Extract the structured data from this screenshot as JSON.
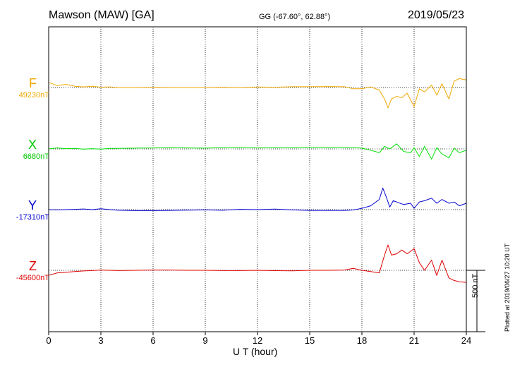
{
  "header": {
    "station": "Mawson (MAW)  [GA]",
    "coords": "GG (-67.60°,  62.88°)",
    "date": "2019/05/23"
  },
  "footer": {
    "plotted": "Plotted at 2019/06/27 10:20 UT",
    "scale_label": "500 nT"
  },
  "colors": {
    "F": "#f0a800",
    "X": "#00e000",
    "Y": "#0000d0",
    "Z": "#e00000"
  },
  "chart_data": {
    "type": "line",
    "title": "Mawson (MAW)  [GA]",
    "xlabel": "U T (hour)",
    "xlim": [
      0,
      24
    ],
    "xticks": [
      0,
      3,
      6,
      9,
      12,
      15,
      18,
      21,
      24
    ],
    "scale_bar_nT": 500,
    "grid": "dotted vertical every 3 h; dotted baseline per component",
    "series": [
      {
        "name": "F",
        "baseline_label": "49230nT",
        "baseline": 49230,
        "color": "#f0a800",
        "x": [
          0,
          0.5,
          1,
          1.5,
          2,
          2.5,
          3,
          3.5,
          4,
          5,
          6,
          7,
          8,
          9,
          10,
          11,
          12,
          13,
          14,
          15,
          16,
          17,
          17.5,
          18,
          18.5,
          19,
          19.3,
          19.5,
          19.7,
          20,
          20.3,
          20.6,
          21,
          21.3,
          21.6,
          22,
          22.3,
          22.6,
          23,
          23.3,
          23.6,
          24
        ],
        "y": [
          49270,
          49245,
          49255,
          49240,
          49235,
          49240,
          49232,
          49235,
          49230,
          49230,
          49232,
          49230,
          49230,
          49230,
          49232,
          49230,
          49234,
          49232,
          49236,
          49236,
          49238,
          49236,
          49220,
          49220,
          49235,
          49210,
          49140,
          49070,
          49140,
          49160,
          49150,
          49185,
          49080,
          49220,
          49195,
          49250,
          49170,
          49260,
          49140,
          49280,
          49300,
          49290
        ]
      },
      {
        "name": "X",
        "baseline_label": "6680nT",
        "baseline": 6680,
        "color": "#00e000",
        "x": [
          0,
          0.5,
          1,
          1.5,
          2,
          2.5,
          3,
          3.5,
          4,
          5,
          6,
          7,
          8,
          9,
          10,
          11,
          12,
          13,
          14,
          15,
          16,
          17,
          17.5,
          18,
          18.5,
          19,
          19.3,
          19.6,
          20,
          20.4,
          20.8,
          21,
          21.3,
          21.6,
          22,
          22.3,
          22.6,
          23,
          23.3,
          23.6,
          24
        ],
        "y": [
          6680,
          6688,
          6682,
          6684,
          6678,
          6682,
          6678,
          6684,
          6684,
          6686,
          6688,
          6690,
          6688,
          6686,
          6690,
          6692,
          6688,
          6690,
          6690,
          6692,
          6694,
          6694,
          6690,
          6686,
          6670,
          6650,
          6700,
          6680,
          6720,
          6660,
          6650,
          6690,
          6620,
          6700,
          6600,
          6690,
          6640,
          6610,
          6685,
          6650,
          6670
        ]
      },
      {
        "name": "Y",
        "baseline_label": "-17310nT",
        "baseline": -17310,
        "color": "#0000d0",
        "x": [
          0,
          0.5,
          1,
          1.5,
          2,
          2.5,
          3,
          3.5,
          4,
          5,
          6,
          7,
          8,
          9,
          10,
          11,
          12,
          13,
          14,
          15,
          16,
          17,
          17.5,
          18,
          18.5,
          19,
          19.2,
          19.4,
          19.6,
          19.8,
          20,
          20.4,
          20.8,
          21,
          21.3,
          21.6,
          22,
          22.3,
          22.6,
          23,
          23.3,
          23.6,
          24
        ],
        "y": [
          -17310,
          -17312,
          -17310,
          -17308,
          -17305,
          -17310,
          -17303,
          -17310,
          -17315,
          -17318,
          -17318,
          -17316,
          -17314,
          -17312,
          -17315,
          -17308,
          -17310,
          -17306,
          -17312,
          -17316,
          -17316,
          -17316,
          -17313,
          -17300,
          -17280,
          -17230,
          -17140,
          -17210,
          -17290,
          -17240,
          -17250,
          -17270,
          -17260,
          -17300,
          -17250,
          -17240,
          -17220,
          -17260,
          -17230,
          -17260,
          -17250,
          -17280,
          -17260
        ]
      },
      {
        "name": "Z",
        "baseline_label": "-45600nT",
        "baseline": -45600,
        "color": "#e00000",
        "x": [
          0,
          0.5,
          1,
          1.5,
          2,
          2.5,
          3,
          3.5,
          4,
          5,
          6,
          7,
          8,
          9,
          10,
          11,
          12,
          13,
          14,
          15,
          16,
          17,
          17.5,
          18,
          18.5,
          19,
          19.3,
          19.5,
          19.7,
          20,
          20.3,
          20.6,
          21,
          21.3,
          21.6,
          22,
          22.3,
          22.6,
          23,
          23.3,
          23.6,
          24
        ],
        "y": [
          -45640,
          -45620,
          -45615,
          -45610,
          -45605,
          -45602,
          -45598,
          -45600,
          -45602,
          -45600,
          -45598,
          -45598,
          -45600,
          -45600,
          -45602,
          -45602,
          -45600,
          -45603,
          -45604,
          -45600,
          -45600,
          -45598,
          -45585,
          -45600,
          -45610,
          -45620,
          -45480,
          -45400,
          -45480,
          -45470,
          -45440,
          -45470,
          -45430,
          -45540,
          -45600,
          -45520,
          -45640,
          -45520,
          -45660,
          -45680,
          -45690,
          -45695
        ]
      }
    ]
  }
}
